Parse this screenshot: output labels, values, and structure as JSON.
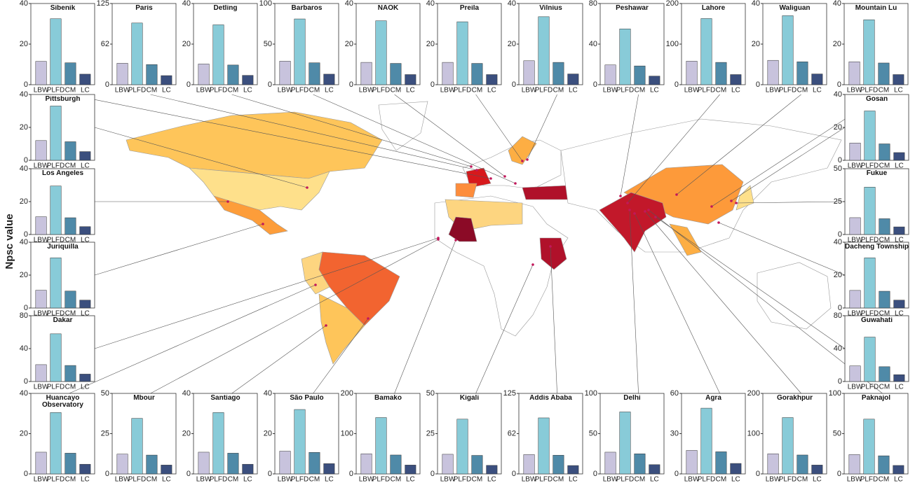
{
  "ylabel": "Npsc value",
  "chart_data": [
    {
      "type": "bar",
      "title": "Šibenik",
      "categories": [
        "LBW",
        "PLFD",
        "CM",
        "LC"
      ],
      "values": [
        11.5,
        32.5,
        10.8,
        5.2
      ],
      "colors": [
        "#c8c3dd",
        "#88cbd8",
        "#4f8aa8",
        "#3b4f7e"
      ],
      "ylim": [
        0,
        40
      ],
      "yticks": [
        0,
        20,
        40
      ]
    },
    {
      "type": "bar",
      "title": "Paris",
      "categories": [
        "LBW",
        "PLFD",
        "CM",
        "LC"
      ],
      "values": [
        33,
        95,
        31,
        14
      ],
      "colors": [
        "#c8c3dd",
        "#88cbd8",
        "#4f8aa8",
        "#3b4f7e"
      ],
      "ylim": [
        0,
        125
      ],
      "yticks": [
        0,
        {
          "value": 62.5,
          "label": "62"
        },
        125
      ]
    },
    {
      "type": "bar",
      "title": "Detling",
      "categories": [
        "LBW",
        "PLFD",
        "CM",
        "LC"
      ],
      "values": [
        10.2,
        29.5,
        9.7,
        4.6
      ],
      "colors": [
        "#c8c3dd",
        "#88cbd8",
        "#4f8aa8",
        "#3b4f7e"
      ],
      "ylim": [
        0,
        40
      ],
      "yticks": [
        0,
        20,
        40
      ]
    },
    {
      "type": "bar",
      "title": "Barbaros",
      "categories": [
        "LBW",
        "PLFD",
        "CM",
        "LC"
      ],
      "values": [
        29,
        81,
        27,
        13
      ],
      "colors": [
        "#c8c3dd",
        "#88cbd8",
        "#4f8aa8",
        "#3b4f7e"
      ],
      "ylim": [
        0,
        100
      ],
      "yticks": [
        0,
        50,
        100
      ]
    },
    {
      "type": "bar",
      "title": "NAOK",
      "categories": [
        "LBW",
        "PLFD",
        "CM",
        "LC"
      ],
      "values": [
        11,
        31.5,
        10.5,
        5
      ],
      "colors": [
        "#c8c3dd",
        "#88cbd8",
        "#4f8aa8",
        "#3b4f7e"
      ],
      "ylim": [
        0,
        40
      ],
      "yticks": [
        0,
        20,
        40
      ]
    },
    {
      "type": "bar",
      "title": "Preila",
      "categories": [
        "LBW",
        "PLFD",
        "CM",
        "LC"
      ],
      "values": [
        11,
        31,
        10.5,
        5
      ],
      "colors": [
        "#c8c3dd",
        "#88cbd8",
        "#4f8aa8",
        "#3b4f7e"
      ],
      "ylim": [
        0,
        40
      ],
      "yticks": [
        0,
        20,
        40
      ]
    },
    {
      "type": "bar",
      "title": "Vilnius",
      "categories": [
        "LBW",
        "PLFD",
        "CM",
        "LC"
      ],
      "values": [
        11.8,
        33.5,
        11,
        5.3
      ],
      "colors": [
        "#c8c3dd",
        "#88cbd8",
        "#4f8aa8",
        "#3b4f7e"
      ],
      "ylim": [
        0,
        40
      ],
      "yticks": [
        0,
        20,
        40
      ]
    },
    {
      "type": "bar",
      "title": "Peshawar",
      "categories": [
        "LBW",
        "PLFD",
        "CM",
        "LC"
      ],
      "values": [
        19.5,
        55,
        18.5,
        8.5
      ],
      "colors": [
        "#c8c3dd",
        "#88cbd8",
        "#4f8aa8",
        "#3b4f7e"
      ],
      "ylim": [
        0,
        80
      ],
      "yticks": [
        0,
        40,
        80
      ]
    },
    {
      "type": "bar",
      "title": "Lahore",
      "categories": [
        "LBW",
        "PLFD",
        "CM",
        "LC"
      ],
      "values": [
        58,
        163,
        55,
        25
      ],
      "colors": [
        "#c8c3dd",
        "#88cbd8",
        "#4f8aa8",
        "#3b4f7e"
      ],
      "ylim": [
        0,
        200
      ],
      "yticks": [
        0,
        100,
        200
      ]
    },
    {
      "type": "bar",
      "title": "Waliguan",
      "categories": [
        "LBW",
        "PLFD",
        "CM",
        "LC"
      ],
      "values": [
        12,
        34,
        11.3,
        5.3
      ],
      "colors": [
        "#c8c3dd",
        "#88cbd8",
        "#4f8aa8",
        "#3b4f7e"
      ],
      "ylim": [
        0,
        40
      ],
      "yticks": [
        0,
        20,
        40
      ]
    },
    {
      "type": "bar",
      "title": "Mountain Lu",
      "categories": [
        "LBW",
        "PLFD",
        "CM",
        "LC"
      ],
      "values": [
        11.3,
        32,
        10.7,
        5
      ],
      "colors": [
        "#c8c3dd",
        "#88cbd8",
        "#4f8aa8",
        "#3b4f7e"
      ],
      "ylim": [
        0,
        40
      ],
      "yticks": [
        0,
        20,
        40
      ]
    },
    {
      "type": "bar",
      "title": "Pittsburgh",
      "categories": [
        "LBW",
        "PLFD",
        "CM",
        "LC"
      ],
      "values": [
        12,
        33,
        11.3,
        5.3
      ],
      "colors": [
        "#c8c3dd",
        "#88cbd8",
        "#4f8aa8",
        "#3b4f7e"
      ],
      "ylim": [
        0,
        40
      ],
      "yticks": [
        0,
        20,
        40
      ]
    },
    {
      "type": "bar",
      "title": "Los Angeles",
      "categories": [
        "LBW",
        "PLFD",
        "CM",
        "LC"
      ],
      "values": [
        10.8,
        29.5,
        10.2,
        4.8
      ],
      "colors": [
        "#c8c3dd",
        "#88cbd8",
        "#4f8aa8",
        "#3b4f7e"
      ],
      "ylim": [
        0,
        40
      ],
      "yticks": [
        0,
        20,
        40
      ]
    },
    {
      "type": "bar",
      "title": "Juriquilla",
      "categories": [
        "LBW",
        "PLFD",
        "CM",
        "LC"
      ],
      "values": [
        10.8,
        30.5,
        10.3,
        4.8
      ],
      "colors": [
        "#c8c3dd",
        "#88cbd8",
        "#4f8aa8",
        "#3b4f7e"
      ],
      "ylim": [
        0,
        40
      ],
      "yticks": [
        0,
        20,
        40
      ]
    },
    {
      "type": "bar",
      "title": "Dakar",
      "categories": [
        "LBW",
        "PLFD",
        "CM",
        "LC"
      ],
      "values": [
        20.5,
        58,
        19.5,
        9
      ],
      "colors": [
        "#c8c3dd",
        "#88cbd8",
        "#4f8aa8",
        "#3b4f7e"
      ],
      "ylim": [
        0,
        80
      ],
      "yticks": [
        0,
        40,
        80
      ]
    },
    {
      "type": "bar",
      "title": "Gosan",
      "categories": [
        "LBW",
        "PLFD",
        "CM",
        "LC"
      ],
      "values": [
        10.5,
        30,
        10,
        4.7
      ],
      "colors": [
        "#c8c3dd",
        "#88cbd8",
        "#4f8aa8",
        "#3b4f7e"
      ],
      "ylim": [
        0,
        40
      ],
      "yticks": [
        0,
        20,
        40
      ]
    },
    {
      "type": "bar",
      "title": "Fukue",
      "categories": [
        "LBW",
        "PLFD",
        "CM",
        "LC"
      ],
      "values": [
        12.8,
        36,
        12,
        5.8
      ],
      "colors": [
        "#c8c3dd",
        "#88cbd8",
        "#4f8aa8",
        "#3b4f7e"
      ],
      "ylim": [
        0,
        50
      ],
      "yticks": [
        0,
        25,
        50
      ]
    },
    {
      "type": "bar",
      "title": "Dacheng Township",
      "categories": [
        "LBW",
        "PLFD",
        "CM",
        "LC"
      ],
      "values": [
        10.7,
        30.5,
        10.2,
        4.8
      ],
      "colors": [
        "#c8c3dd",
        "#88cbd8",
        "#4f8aa8",
        "#3b4f7e"
      ],
      "ylim": [
        0,
        40
      ],
      "yticks": [
        0,
        20,
        40
      ]
    },
    {
      "type": "bar",
      "title": "Guwahati",
      "categories": [
        "LBW",
        "PLFD",
        "CM",
        "LC"
      ],
      "values": [
        19,
        54,
        18,
        8.3
      ],
      "colors": [
        "#c8c3dd",
        "#88cbd8",
        "#4f8aa8",
        "#3b4f7e"
      ],
      "ylim": [
        0,
        80
      ],
      "yticks": [
        0,
        40,
        80
      ]
    },
    {
      "type": "bar",
      "title": "Huancayo Observatory",
      "categories": [
        "LBW",
        "PLFD",
        "CM",
        "LC"
      ],
      "values": [
        10.8,
        30.5,
        10.3,
        4.8
      ],
      "colors": [
        "#c8c3dd",
        "#88cbd8",
        "#4f8aa8",
        "#3b4f7e"
      ],
      "ylim": [
        0,
        40
      ],
      "yticks": [
        0,
        20,
        40
      ]
    },
    {
      "type": "bar",
      "title": "Mbour",
      "categories": [
        "LBW",
        "PLFD",
        "CM",
        "LC"
      ],
      "values": [
        12.3,
        34.5,
        11.7,
        5.5
      ],
      "colors": [
        "#c8c3dd",
        "#88cbd8",
        "#4f8aa8",
        "#3b4f7e"
      ],
      "ylim": [
        0,
        50
      ],
      "yticks": [
        0,
        25,
        50
      ]
    },
    {
      "type": "bar",
      "title": "Santiago",
      "categories": [
        "LBW",
        "PLFD",
        "CM",
        "LC"
      ],
      "values": [
        10.8,
        30.5,
        10.3,
        4.8
      ],
      "colors": [
        "#c8c3dd",
        "#88cbd8",
        "#4f8aa8",
        "#3b4f7e"
      ],
      "ylim": [
        0,
        40
      ],
      "yticks": [
        0,
        20,
        40
      ]
    },
    {
      "type": "bar",
      "title": "São Paulo",
      "categories": [
        "LBW",
        "PLFD",
        "CM",
        "LC"
      ],
      "values": [
        11.3,
        32,
        10.7,
        5.1
      ],
      "colors": [
        "#c8c3dd",
        "#88cbd8",
        "#4f8aa8",
        "#3b4f7e"
      ],
      "ylim": [
        0,
        40
      ],
      "yticks": [
        0,
        20,
        40
      ]
    },
    {
      "type": "bar",
      "title": "Bamako",
      "categories": [
        "LBW",
        "PLFD",
        "CM",
        "LC"
      ],
      "values": [
        50,
        140,
        47,
        22
      ],
      "colors": [
        "#c8c3dd",
        "#88cbd8",
        "#4f8aa8",
        "#3b4f7e"
      ],
      "ylim": [
        0,
        200
      ],
      "yticks": [
        0,
        100,
        200
      ]
    },
    {
      "type": "bar",
      "title": "Kigali",
      "categories": [
        "LBW",
        "PLFD",
        "CM",
        "LC"
      ],
      "values": [
        12.2,
        34,
        11.5,
        5.3
      ],
      "colors": [
        "#c8c3dd",
        "#88cbd8",
        "#4f8aa8",
        "#3b4f7e"
      ],
      "ylim": [
        0,
        50
      ],
      "yticks": [
        0,
        25,
        50
      ]
    },
    {
      "type": "bar",
      "title": "Addis Ababa",
      "categories": [
        "LBW",
        "PLFD",
        "CM",
        "LC"
      ],
      "values": [
        30,
        87,
        29,
        13
      ],
      "colors": [
        "#c8c3dd",
        "#88cbd8",
        "#4f8aa8",
        "#3b4f7e"
      ],
      "ylim": [
        0,
        125
      ],
      "yticks": [
        0,
        {
          "value": 62.5,
          "label": "62"
        },
        125
      ]
    },
    {
      "type": "bar",
      "title": "Delhi",
      "categories": [
        "LBW",
        "PLFD",
        "CM",
        "LC"
      ],
      "values": [
        27,
        77,
        25,
        11.5
      ],
      "colors": [
        "#c8c3dd",
        "#88cbd8",
        "#4f8aa8",
        "#3b4f7e"
      ],
      "ylim": [
        0,
        100
      ],
      "yticks": [
        0,
        50,
        100
      ]
    },
    {
      "type": "bar",
      "title": "Agra",
      "categories": [
        "LBW",
        "PLFD",
        "CM",
        "LC"
      ],
      "values": [
        17.5,
        49,
        16.5,
        7.8
      ],
      "colors": [
        "#c8c3dd",
        "#88cbd8",
        "#4f8aa8",
        "#3b4f7e"
      ],
      "ylim": [
        0,
        60
      ],
      "yticks": [
        0,
        30,
        60
      ]
    },
    {
      "type": "bar",
      "title": "Gorakhpur",
      "categories": [
        "LBW",
        "PLFD",
        "CM",
        "LC"
      ],
      "values": [
        50,
        140,
        47,
        22
      ],
      "colors": [
        "#c8c3dd",
        "#88cbd8",
        "#4f8aa8",
        "#3b4f7e"
      ],
      "ylim": [
        0,
        200
      ],
      "yticks": [
        0,
        100,
        200
      ]
    },
    {
      "type": "bar",
      "title": "Paknajol",
      "categories": [
        "LBW",
        "PLFD",
        "CM",
        "LC"
      ],
      "values": [
        24,
        68,
        22.5,
        10.5
      ],
      "colors": [
        "#c8c3dd",
        "#88cbd8",
        "#4f8aa8",
        "#3b4f7e"
      ],
      "ylim": [
        0,
        100
      ],
      "yticks": [
        0,
        50,
        100
      ]
    }
  ]
}
